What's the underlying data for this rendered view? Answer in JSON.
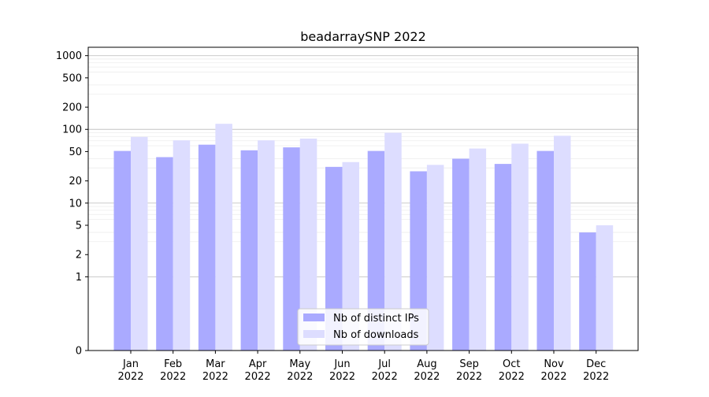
{
  "chart_data": {
    "type": "bar",
    "title": "beadarraySNP 2022",
    "xlabel": "",
    "ylabel": "",
    "yscale": "symlog",
    "ylim": [
      0,
      1300
    ],
    "yticks": [
      0,
      1,
      2,
      5,
      10,
      20,
      50,
      100,
      200,
      500,
      1000
    ],
    "ytick_labels": [
      "0",
      "1",
      "2",
      "5",
      "10",
      "20",
      "50",
      "100",
      "200",
      "500",
      "1000"
    ],
    "grid": "y-major-and-minor",
    "legend_position": "bottom-center",
    "categories": [
      [
        "Jan",
        "2022"
      ],
      [
        "Feb",
        "2022"
      ],
      [
        "Mar",
        "2022"
      ],
      [
        "Apr",
        "2022"
      ],
      [
        "May",
        "2022"
      ],
      [
        "Jun",
        "2022"
      ],
      [
        "Jul",
        "2022"
      ],
      [
        "Aug",
        "2022"
      ],
      [
        "Sep",
        "2022"
      ],
      [
        "Oct",
        "2022"
      ],
      [
        "Nov",
        "2022"
      ],
      [
        "Dec",
        "2022"
      ]
    ],
    "series": [
      {
        "name": "Nb of distinct IPs",
        "color": "#aaaaff",
        "values": [
          51,
          42,
          62,
          52,
          57,
          31,
          51,
          27,
          40,
          34,
          51,
          4
        ]
      },
      {
        "name": "Nb of downloads",
        "color": "#ddddff",
        "values": [
          79,
          71,
          119,
          71,
          75,
          36,
          90,
          33,
          55,
          64,
          82,
          5
        ]
      }
    ]
  }
}
